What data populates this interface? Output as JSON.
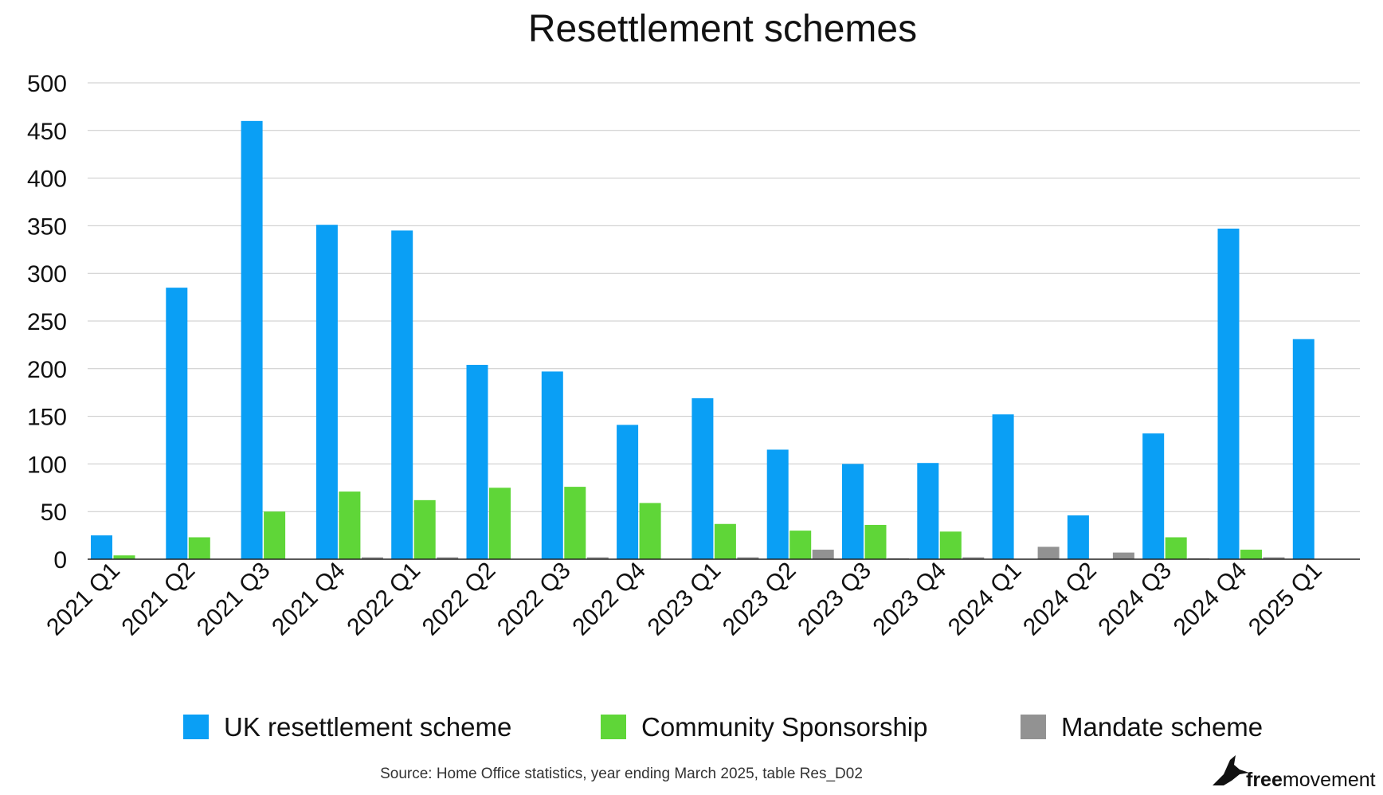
{
  "chart_data": {
    "type": "bar",
    "title": "Resettlement schemes",
    "xlabel": "",
    "ylabel": "",
    "ylim": [
      0,
      500
    ],
    "yticks": [
      0,
      50,
      100,
      150,
      200,
      250,
      300,
      350,
      400,
      450,
      500
    ],
    "grid": true,
    "legend_position": "bottom",
    "categories": [
      "2021 Q1",
      "2021 Q2",
      "2021 Q3",
      "2021 Q4",
      "2022 Q1",
      "2022 Q2",
      "2022 Q3",
      "2022 Q4",
      "2023 Q1",
      "2023 Q2",
      "2023 Q3",
      "2023 Q4",
      "2024 Q1",
      "2024 Q2",
      "2024 Q3",
      "2024 Q4",
      "2025 Q1"
    ],
    "series": [
      {
        "name": "UK resettlement scheme",
        "color": "#0a9ff5",
        "values": [
          25,
          285,
          460,
          351,
          345,
          204,
          197,
          141,
          169,
          115,
          100,
          101,
          152,
          46,
          132,
          347,
          231
        ]
      },
      {
        "name": "Community Sponsorship",
        "color": "#5fd638",
        "values": [
          4,
          23,
          50,
          71,
          62,
          75,
          76,
          59,
          37,
          30,
          36,
          29,
          0,
          0,
          23,
          10,
          0
        ]
      },
      {
        "name": "Mandate scheme",
        "color": "#929292",
        "values": [
          0,
          0,
          0,
          2,
          2,
          0,
          2,
          0,
          2,
          10,
          1,
          2,
          13,
          7,
          1,
          2,
          0
        ]
      }
    ]
  },
  "source": "Source: Home Office statistics, year ending March 2025, table Res_D02",
  "brand": {
    "bold": "free",
    "regular": "movement"
  }
}
